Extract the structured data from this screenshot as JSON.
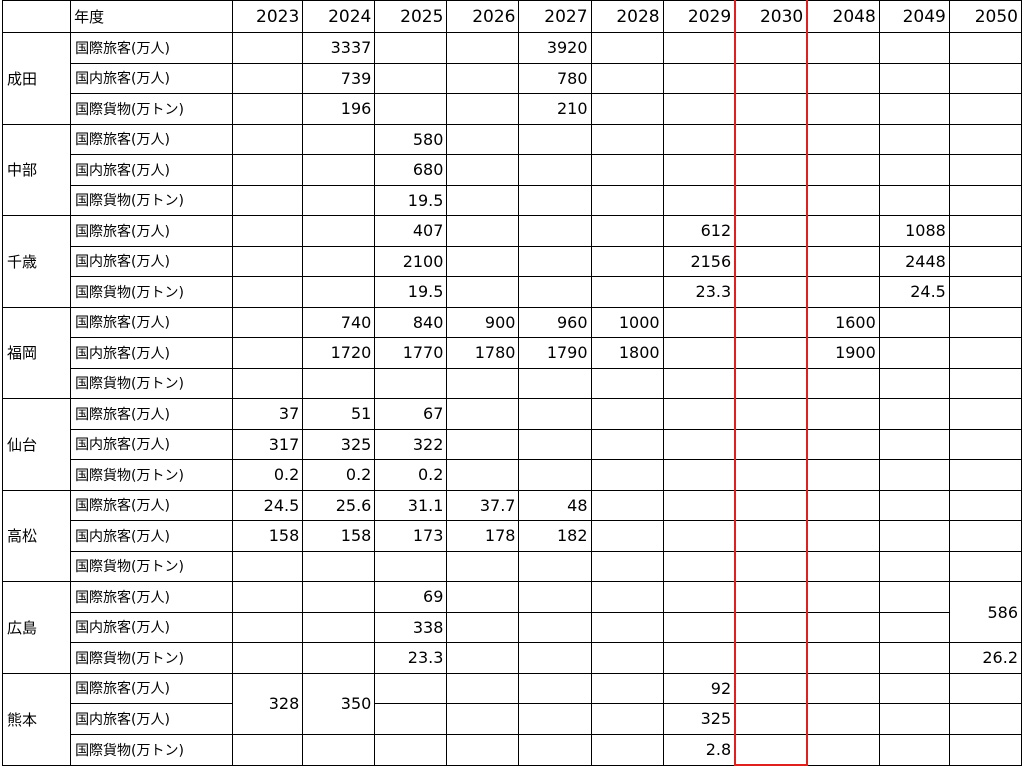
{
  "table": {
    "year_label": "年度",
    "years": [
      2023,
      2024,
      2025,
      2026,
      2027,
      2028,
      2029,
      2030,
      2048,
      2049,
      2050
    ],
    "groups": [
      {
        "airport": "成田",
        "rows": [
          {
            "label": "国際旅客(万人)",
            "cells": [
              null,
              3337,
              null,
              null,
              3920,
              null,
              null,
              null,
              null,
              null,
              null
            ]
          },
          {
            "label": "国内旅客(万人)",
            "cells": [
              null,
              739,
              null,
              null,
              780,
              null,
              null,
              null,
              null,
              null,
              null
            ]
          },
          {
            "label": "国際貨物(万トン)",
            "cells": [
              null,
              196,
              null,
              null,
              210,
              null,
              null,
              null,
              null,
              null,
              null
            ]
          }
        ]
      },
      {
        "airport": "中部",
        "rows": [
          {
            "label": "国際旅客(万人)",
            "cells": [
              null,
              null,
              580,
              null,
              null,
              null,
              null,
              null,
              null,
              null,
              null
            ]
          },
          {
            "label": "国内旅客(万人)",
            "cells": [
              null,
              null,
              680,
              null,
              null,
              null,
              null,
              null,
              null,
              null,
              null
            ]
          },
          {
            "label": "国際貨物(万トン)",
            "cells": [
              null,
              null,
              19.5,
              null,
              null,
              null,
              null,
              null,
              null,
              null,
              null
            ]
          }
        ]
      },
      {
        "airport": "千歳",
        "rows": [
          {
            "label": "国際旅客(万人)",
            "cells": [
              null,
              null,
              407,
              null,
              null,
              null,
              612,
              null,
              null,
              1088,
              null
            ]
          },
          {
            "label": "国内旅客(万人)",
            "cells": [
              null,
              null,
              2100,
              null,
              null,
              null,
              2156,
              null,
              null,
              2448,
              null
            ]
          },
          {
            "label": "国際貨物(万トン)",
            "cells": [
              null,
              null,
              19.5,
              null,
              null,
              null,
              23.3,
              null,
              null,
              24.5,
              null
            ]
          }
        ]
      },
      {
        "airport": "福岡",
        "rows": [
          {
            "label": "国際旅客(万人)",
            "cells": [
              null,
              740,
              840,
              900,
              960,
              1000,
              null,
              null,
              1600,
              null,
              null
            ]
          },
          {
            "label": "国内旅客(万人)",
            "cells": [
              null,
              1720,
              1770,
              1780,
              1790,
              1800,
              null,
              null,
              1900,
              null,
              null
            ]
          },
          {
            "label": "国際貨物(万トン)",
            "cells": [
              null,
              null,
              null,
              null,
              null,
              null,
              null,
              null,
              null,
              null,
              null
            ]
          }
        ]
      },
      {
        "airport": "仙台",
        "rows": [
          {
            "label": "国際旅客(万人)",
            "cells": [
              37,
              51,
              67,
              null,
              null,
              null,
              null,
              null,
              null,
              null,
              null
            ]
          },
          {
            "label": "国内旅客(万人)",
            "cells": [
              317,
              325,
              322,
              null,
              null,
              null,
              null,
              null,
              null,
              null,
              null
            ]
          },
          {
            "label": "国際貨物(万トン)",
            "cells": [
              0.2,
              0.2,
              0.2,
              null,
              null,
              null,
              null,
              null,
              null,
              null,
              null
            ]
          }
        ]
      },
      {
        "airport": "高松",
        "rows": [
          {
            "label": "国際旅客(万人)",
            "cells": [
              24.5,
              25.6,
              31.1,
              37.7,
              48,
              null,
              null,
              null,
              null,
              null,
              null
            ]
          },
          {
            "label": "国内旅客(万人)",
            "cells": [
              158,
              158,
              173,
              178,
              182,
              null,
              null,
              null,
              null,
              null,
              null
            ]
          },
          {
            "label": "国際貨物(万トン)",
            "cells": [
              null,
              null,
              null,
              null,
              null,
              null,
              null,
              null,
              null,
              null,
              null
            ]
          }
        ]
      },
      {
        "airport": "広島",
        "rows": [
          {
            "label": "国際旅客(万人)",
            "cells": [
              null,
              null,
              69,
              null,
              null,
              null,
              null,
              null,
              null,
              null,
              586
            ]
          },
          {
            "label": "国内旅客(万人)",
            "cells": [
              null,
              null,
              338,
              null,
              null,
              null,
              null,
              null,
              null,
              null,
              null
            ]
          },
          {
            "label": "国際貨物(万トン)",
            "cells": [
              null,
              null,
              23.3,
              null,
              null,
              null,
              null,
              null,
              null,
              null,
              26.2
            ]
          }
        ]
      },
      {
        "airport": "熊本",
        "rows": [
          {
            "label": "国際旅客(万人)",
            "cells": [
              328,
              350,
              null,
              null,
              null,
              null,
              92,
              null,
              null,
              null,
              null
            ]
          },
          {
            "label": "国内旅客(万人)",
            "cells": [
              null,
              null,
              null,
              null,
              null,
              null,
              325,
              null,
              null,
              null,
              null
            ]
          },
          {
            "label": "国際貨物(万トン)",
            "cells": [
              null,
              null,
              null,
              null,
              null,
              null,
              2.8,
              null,
              null,
              null,
              null
            ]
          }
        ]
      }
    ]
  }
}
